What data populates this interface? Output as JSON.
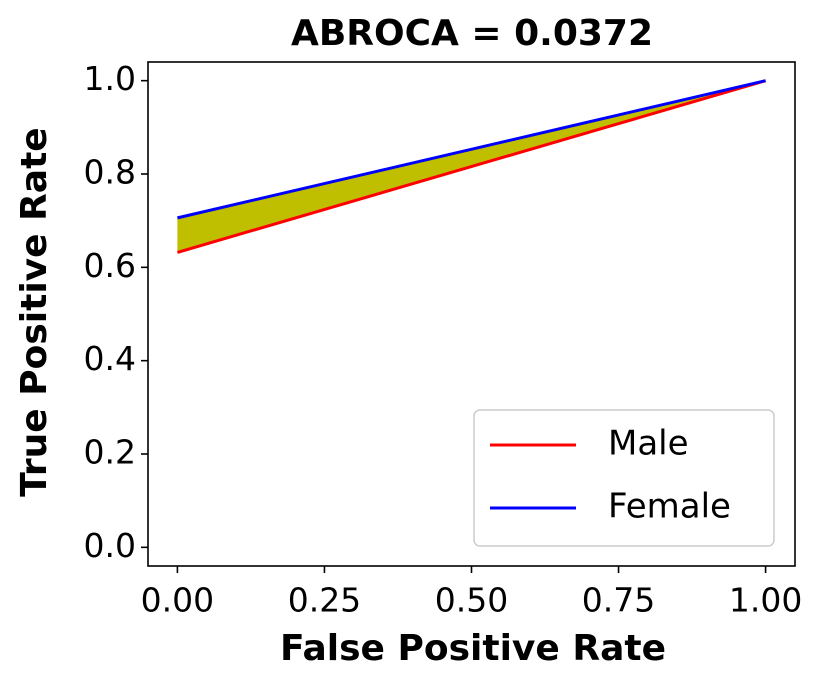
{
  "chart_data": {
    "type": "line",
    "title": "ABROCA = 0.0372",
    "x_label": "False Positive Rate",
    "y_label": "True Positive Rate",
    "x": [
      0,
      1
    ],
    "series": [
      {
        "name": "Male",
        "color": "#ff0000",
        "values": [
          0.632,
          1.0
        ]
      },
      {
        "name": "Female",
        "color": "#0000ff",
        "values": [
          0.706,
          1.0
        ]
      }
    ],
    "fill_between_color": "#bfbf00",
    "xlim": [
      -0.05,
      1.05
    ],
    "ylim": [
      -0.04,
      1.04
    ],
    "xticks": [
      {
        "value": 0,
        "label": "0.00"
      },
      {
        "value": 0.25,
        "label": "0.25"
      },
      {
        "value": 0.5,
        "label": "0.50"
      },
      {
        "value": 0.75,
        "label": "0.75"
      },
      {
        "value": 1,
        "label": "1.00"
      }
    ],
    "yticks": [
      {
        "value": 0,
        "label": "0.0"
      },
      {
        "value": 0.2,
        "label": "0.2"
      },
      {
        "value": 0.4,
        "label": "0.4"
      },
      {
        "value": 0.6,
        "label": "0.6"
      },
      {
        "value": 0.8,
        "label": "0.8"
      },
      {
        "value": 1,
        "label": "1.0"
      }
    ],
    "legend": "lower right",
    "grid": false
  }
}
